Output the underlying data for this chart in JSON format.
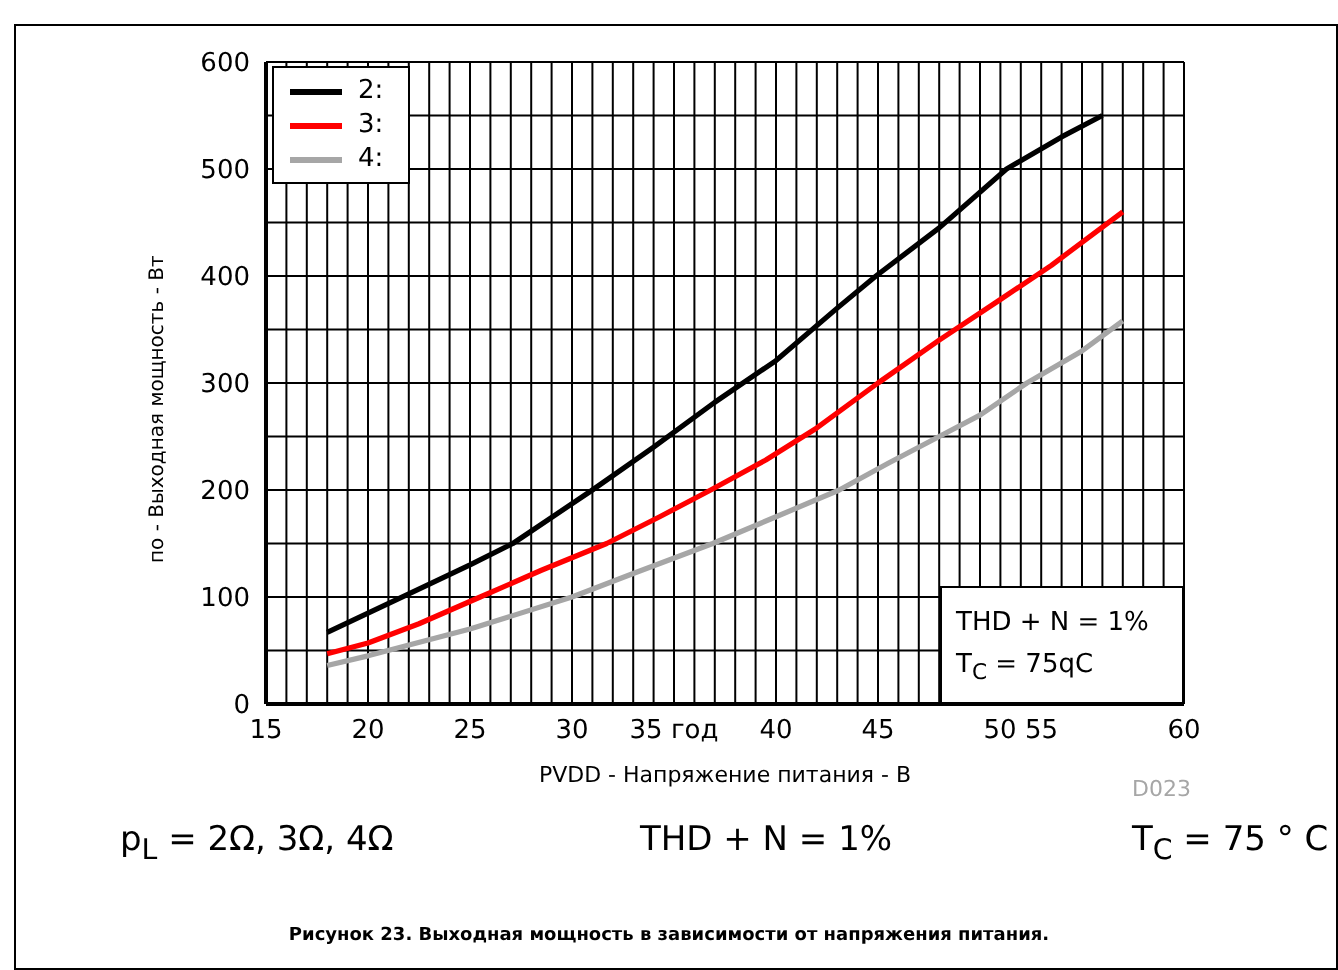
{
  "chart_data": {
    "type": "line",
    "title": "Рисунок 23. Выходная мощность в зависимости от напряжения питания.",
    "xlabel": "PVDD - Напряжение питания - В",
    "ylabel": "по - Выходная мощность - Вт",
    "series": [
      {
        "name": "2:",
        "color": "#000000",
        "x": [
          18,
          20,
          22,
          25,
          27.1,
          31,
          34,
          37,
          40,
          43,
          44.9,
          48,
          51.3,
          54,
          56
        ],
        "values": [
          67,
          85,
          103,
          130,
          150,
          200,
          240,
          282,
          321,
          370,
          400,
          445,
          500,
          530,
          550
        ]
      },
      {
        "name": "3:",
        "color": "#ff0000",
        "x": [
          18,
          20,
          22.5,
          25.5,
          28.5,
          31.7,
          34.3,
          36.8,
          39.5,
          42,
          45,
          48,
          51,
          53.5,
          57
        ],
        "values": [
          47,
          57,
          75,
          100,
          125,
          150,
          175,
          200,
          228,
          258,
          300,
          340,
          378,
          410,
          460
        ]
      },
      {
        "name": "4:",
        "color": "#a6a6a6",
        "x": [
          18,
          20,
          25,
          30,
          33,
          36.9,
          40,
          43.1,
          45.5,
          48,
          50,
          52.3,
          55,
          57
        ],
        "values": [
          36,
          45,
          70,
          100,
          122,
          150,
          175,
          200,
          225,
          250,
          270,
          300,
          330,
          358
        ]
      }
    ],
    "xlim": [
      15,
      60
    ],
    "xticks": [
      15,
      {
        "value": 16,
        "label": null
      },
      {
        "value": 17,
        "label": null
      },
      {
        "value": 18,
        "label": null
      },
      {
        "value": 19,
        "label": null
      },
      20,
      {
        "value": 21,
        "label": null
      },
      {
        "value": 22,
        "label": null
      },
      {
        "value": 23,
        "label": null
      },
      {
        "value": 24,
        "label": null
      },
      25,
      {
        "value": 26,
        "label": null
      },
      {
        "value": 27,
        "label": null
      },
      {
        "value": 28,
        "label": null
      },
      {
        "value": 29,
        "label": null
      },
      30,
      {
        "value": 31,
        "label": null
      },
      {
        "value": 32,
        "label": null
      },
      {
        "value": 33,
        "label": null
      },
      {
        "value": 34,
        "label": null
      },
      {
        "value": 35,
        "label": "35 год"
      },
      {
        "value": 36,
        "label": null
      },
      {
        "value": 37,
        "label": null
      },
      {
        "value": 38,
        "label": null
      },
      {
        "value": 39,
        "label": null
      },
      40,
      {
        "value": 41,
        "label": null
      },
      {
        "value": 42,
        "label": null
      },
      {
        "value": 43,
        "label": null
      },
      {
        "value": 44,
        "label": null
      },
      45,
      {
        "value": 46,
        "label": null
      },
      {
        "value": 47,
        "label": null
      },
      {
        "value": 48,
        "label": null
      },
      {
        "value": 49,
        "label": null
      },
      {
        "value": 50,
        "label": null
      },
      {
        "value": 51,
        "label": null
      },
      {
        "value": 52,
        "label": "50 55"
      },
      {
        "value": 53,
        "label": null
      },
      {
        "value": 54,
        "label": null
      },
      {
        "value": 55,
        "label": null
      },
      {
        "value": 56,
        "label": null
      },
      {
        "value": 57,
        "label": null
      },
      {
        "value": 58,
        "label": null
      },
      {
        "value": 59,
        "label": null
      },
      60
    ],
    "ylim": [
      0,
      600
    ],
    "yticks": [
      0,
      {
        "value": 50,
        "label": null
      },
      100,
      {
        "value": 150,
        "label": null
      },
      200,
      {
        "value": 250,
        "label": null
      },
      300,
      {
        "value": 350,
        "label": null
      },
      400,
      {
        "value": 450,
        "label": null
      },
      500,
      {
        "value": 550,
        "label": null
      },
      600
    ],
    "grid": true,
    "legend": "top left",
    "marker": "none",
    "line_style": "solid",
    "annotations": [
      "THD + N = 1%",
      "T$_{C}$ = 75qC",
      "D023",
      "p$_{L}$ = 2Ω, 3Ω, 4Ω",
      "THD + N = 1%",
      "T$_{C}$ = 75 ° C"
    ]
  }
}
